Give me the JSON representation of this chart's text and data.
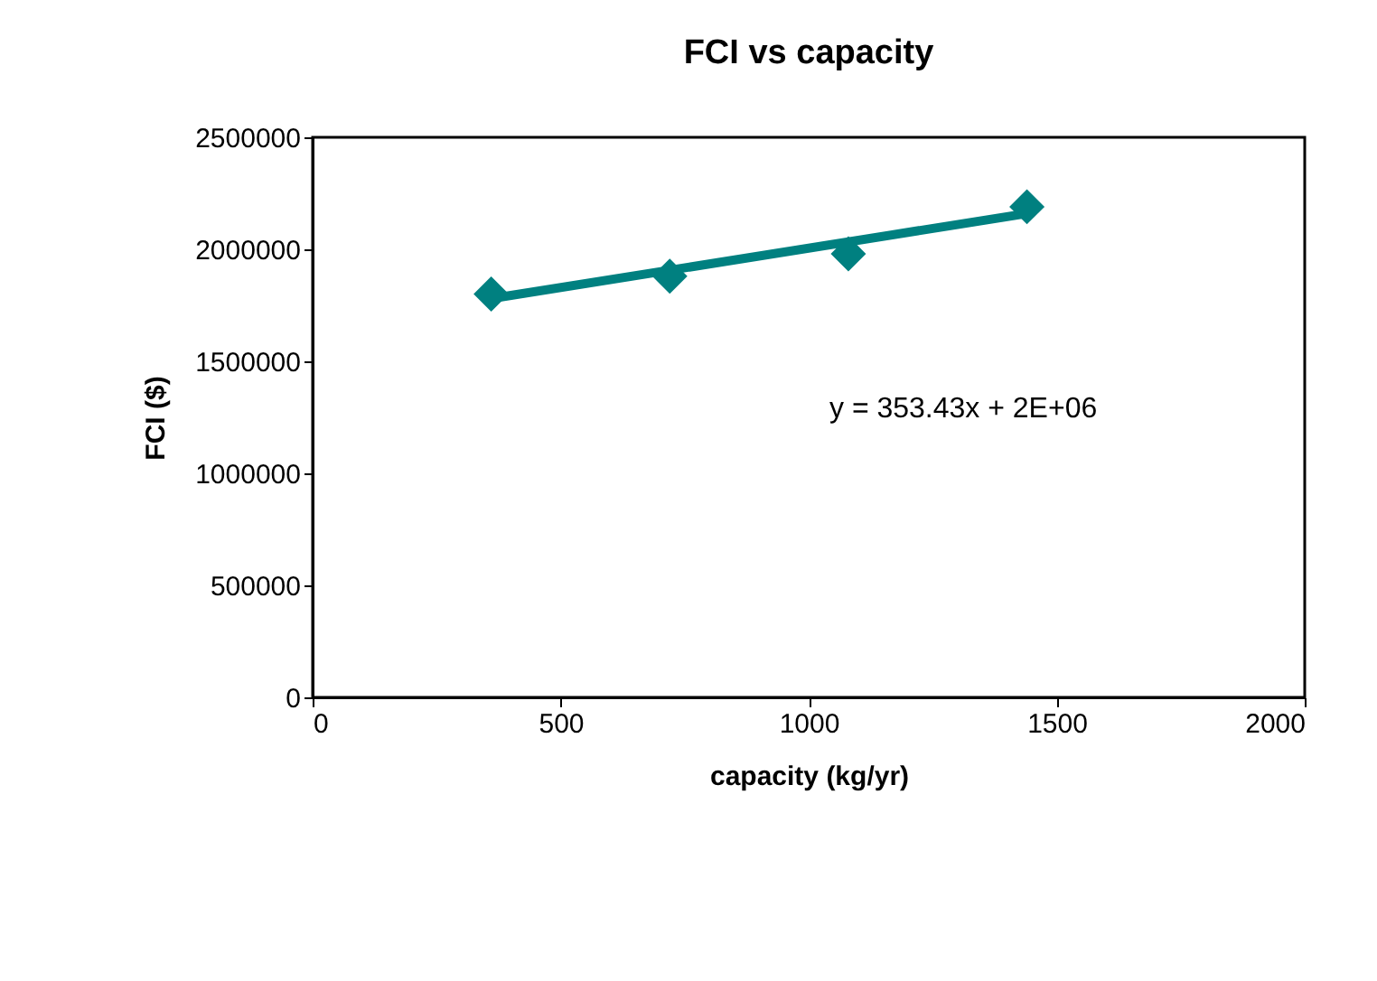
{
  "chart_data": {
    "type": "scatter",
    "title": "FCI vs capacity",
    "xlabel": "capacity (kg/yr)",
    "ylabel": "FCI ($)",
    "x": [
      360,
      720,
      1080,
      1440
    ],
    "series": [
      {
        "color": "#008080",
        "values": [
          1800000,
          1880000,
          1980000,
          2190000
        ],
        "marker": "diamond"
      },
      {
        "type": "line",
        "color": "#008080",
        "x": [
          360,
          1440
        ],
        "values": [
          1780000,
          2160000
        ],
        "marker": "none",
        "line_style": "solid"
      }
    ],
    "xlim": [
      0,
      2000
    ],
    "xticks": [
      0,
      500,
      1000,
      1500,
      2000
    ],
    "ylim": [
      0,
      2500000
    ],
    "yticks": [
      0,
      500000,
      1000000,
      1500000,
      2000000,
      2500000
    ],
    "grid": false,
    "annotations": [
      "y = 353.43x + 2E+06"
    ]
  }
}
